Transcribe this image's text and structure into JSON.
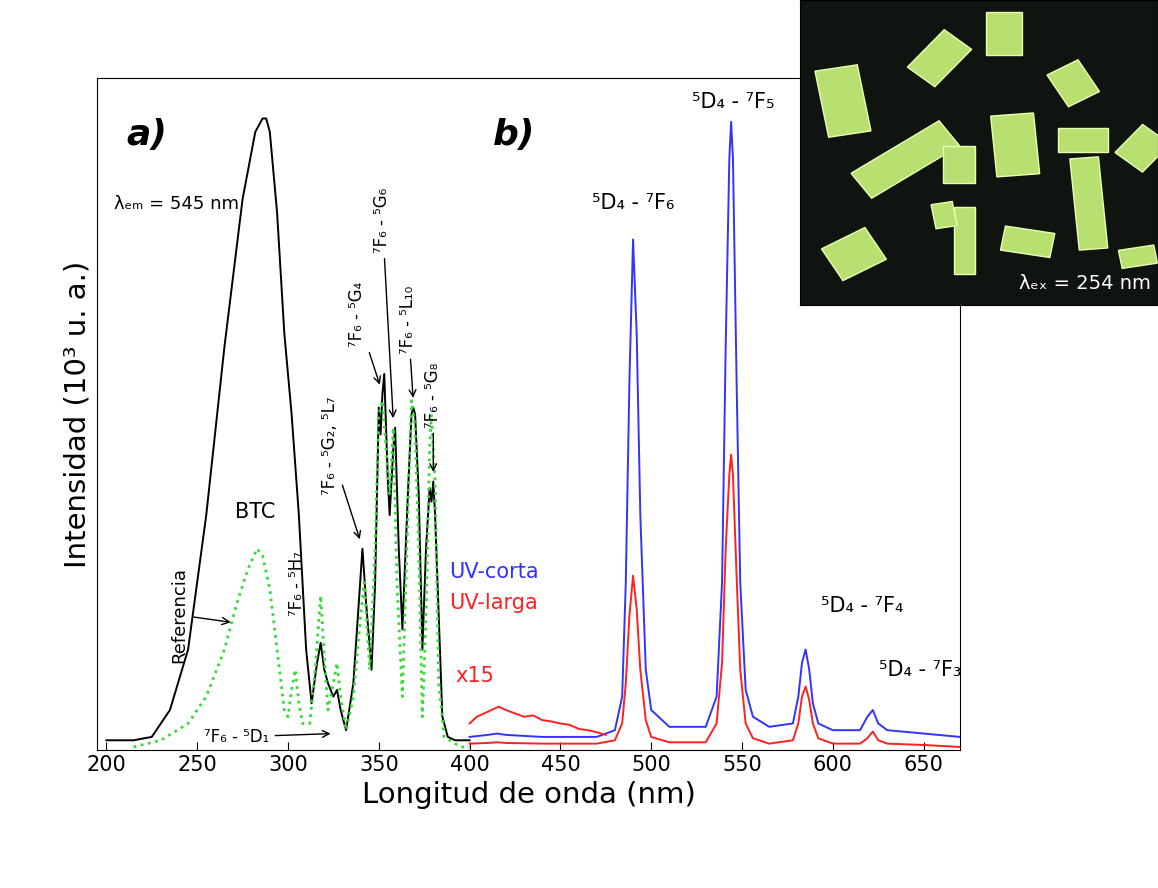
{
  "chart_data": {
    "type": "line",
    "xlabel": "Longitud de onda (nm)",
    "ylabel": "Intensidad (10³ u. a.)",
    "xlim": [
      195,
      670
    ],
    "xticks": [
      200,
      250,
      300,
      350,
      400,
      450,
      500,
      550,
      600,
      650
    ],
    "ylim": [
      0,
      100
    ],
    "tick_labels": "x",
    "panel_labels": [
      "a)",
      "b)"
    ],
    "annotations": [
      "λₑₘ = 545 nm",
      "⁷F₆ - ⁵D₁",
      "⁷F₆ - ⁵H₇",
      "⁷F₆ - ⁵G₂, ⁵L₇",
      "⁷F₆ - ⁵G₄",
      "⁷F₆ - ⁵G₆",
      "⁷F₆ - ⁵L₁₀",
      "⁷F₆ - ⁵G₈",
      "⁵D₄ - ⁷F₆",
      "⁵D₄ - ⁷F₅",
      "⁵D₄ - ⁷F₄",
      "⁵D₄ - ⁷F₃"
    ],
    "inset_label": "λₑₓ = 254 nm",
    "series": [
      {
        "name": "BTC",
        "color": "#000000",
        "line_style": "solid",
        "x": [
          200,
          215,
          225,
          235,
          245,
          255,
          265,
          275,
          282,
          286,
          288,
          290,
          294,
          298,
          302,
          306,
          310,
          313,
          316,
          318,
          320,
          322,
          325,
          327,
          329,
          332,
          336,
          339,
          341,
          343,
          346,
          348,
          350,
          351,
          352,
          353,
          355,
          356,
          358,
          359,
          361,
          363,
          366,
          368,
          369,
          370,
          372,
          374,
          376,
          378,
          379,
          380,
          381,
          383,
          385,
          388,
          392,
          400
        ],
        "values": [
          1.5,
          1.5,
          2,
          6,
          15,
          35,
          60,
          82,
          92,
          94,
          94,
          92,
          80,
          62,
          50,
          35,
          15,
          7,
          13,
          16,
          12,
          10,
          8,
          9,
          6,
          3,
          10,
          22,
          30,
          22,
          12,
          25,
          51,
          47,
          53,
          56,
          40,
          35,
          45,
          48,
          30,
          18,
          38,
          50,
          51,
          50,
          38,
          15,
          30,
          39,
          37,
          40,
          35,
          20,
          5,
          2,
          1.5,
          1.5
        ]
      },
      {
        "name": "Referencia",
        "color": "#33dd33",
        "line_style": "dotted",
        "x": [
          215,
          230,
          245,
          255,
          265,
          272,
          278,
          283,
          286,
          290,
          294,
          298,
          300,
          302,
          304,
          306,
          308,
          312,
          315,
          318,
          320,
          322,
          325,
          327,
          329,
          332,
          336,
          340,
          342,
          345,
          348,
          350,
          352,
          354,
          356,
          358,
          360,
          363,
          366,
          368,
          370,
          372,
          374,
          376,
          378,
          379,
          381,
          383,
          386,
          395,
          400
        ],
        "values": [
          0.5,
          1.5,
          4,
          8,
          15,
          22,
          27,
          30,
          29,
          24,
          15,
          6,
          5,
          9,
          12,
          7,
          4,
          4,
          12,
          23,
          14,
          6,
          10,
          13,
          8,
          3,
          8,
          20,
          25,
          12,
          30,
          50,
          52,
          45,
          38,
          48,
          25,
          8,
          35,
          52,
          48,
          30,
          5,
          20,
          45,
          50,
          40,
          10,
          2,
          0.5,
          0.5
        ]
      },
      {
        "name": "UV-corta",
        "color": "#3333ff",
        "line_style": "solid",
        "x": [
          400,
          410,
          415,
          420,
          440,
          470,
          480,
          484,
          486,
          488,
          490,
          492,
          494,
          497,
          500,
          510,
          530,
          536,
          539,
          541,
          543,
          544,
          545,
          547,
          549,
          552,
          556,
          565,
          578,
          581,
          583,
          585,
          587,
          589,
          592,
          600,
          615,
          619,
          622,
          625,
          630,
          650,
          670
        ],
        "values": [
          2,
          2.3,
          2.5,
          2.3,
          2,
          2,
          3,
          8,
          25,
          55,
          76,
          62,
          35,
          12,
          6,
          3.5,
          3.5,
          8,
          25,
          60,
          88,
          93.5,
          88,
          55,
          25,
          9,
          5,
          3.5,
          4,
          8,
          13,
          15,
          12,
          7,
          4,
          3,
          3,
          5,
          6,
          4,
          3,
          2.5,
          2
        ]
      },
      {
        "name": "UV-larga",
        "color": "#ff2020",
        "line_style": "solid",
        "x": [
          400,
          410,
          415,
          420,
          440,
          470,
          480,
          484,
          486,
          488,
          490,
          492,
          494,
          497,
          500,
          510,
          530,
          536,
          539,
          541,
          543,
          544,
          545,
          547,
          549,
          552,
          556,
          565,
          578,
          581,
          583,
          585,
          587,
          589,
          592,
          600,
          615,
          619,
          622,
          625,
          630,
          650,
          670
        ],
        "values": [
          1,
          1.1,
          1.2,
          1.1,
          1,
          1,
          1.5,
          4,
          10,
          20,
          26,
          21,
          12,
          4.5,
          2,
          1.2,
          1.2,
          4,
          13,
          30,
          41,
          44,
          41,
          26,
          12,
          4,
          1.8,
          1,
          1.5,
          4,
          8,
          9.5,
          7.5,
          4,
          1.8,
          1,
          1,
          1.8,
          2.8,
          1.5,
          1,
          0.8,
          0.5
        ]
      },
      {
        "name": "x15",
        "color": "#ff2020",
        "line_style": "solid",
        "x": [
          400,
          404,
          408,
          412,
          416,
          420,
          425,
          430,
          435,
          440,
          445,
          450,
          455,
          460,
          465,
          470,
          475
        ],
        "values": [
          4,
          5,
          5.5,
          6,
          6.5,
          6,
          5.5,
          5,
          5.2,
          4.5,
          4.3,
          4,
          3.8,
          3.2,
          3,
          2.7,
          2.3
        ]
      }
    ]
  }
}
